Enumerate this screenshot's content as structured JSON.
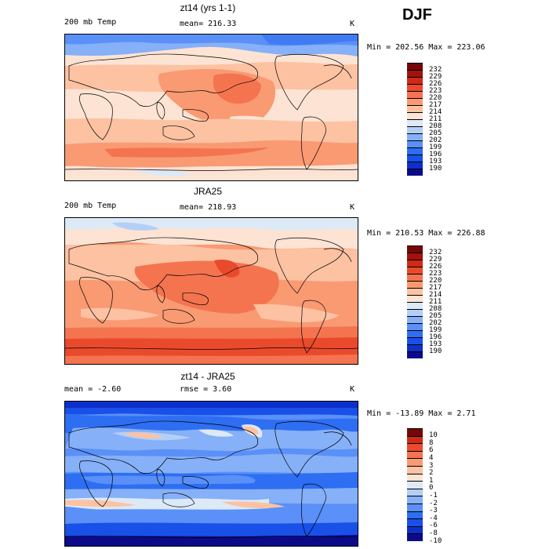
{
  "season_label": "DJF",
  "palette_abs": [
    "#0b0b8a",
    "#0d2fcc",
    "#1950e8",
    "#2e6ef2",
    "#5a90f7",
    "#86b0f7",
    "#b4cff7",
    "#dce9f7",
    "#fde3d3",
    "#fcc2a2",
    "#f99a73",
    "#f47450",
    "#ea4a2c",
    "#cf2a14",
    "#a3130c",
    "#750707"
  ],
  "palette_diff": [
    "#0b0b8a",
    "#0d2fcc",
    "#1950e8",
    "#2e6ef2",
    "#5a90f7",
    "#86b0f7",
    "#b4cff7",
    "#dce9f7",
    "#fde3d3",
    "#fcc2a2",
    "#f99a73",
    "#f47450",
    "#ea4a2c",
    "#cf2a14",
    "#750707"
  ],
  "panels": [
    {
      "title": "zt14 (yrs 1-1)",
      "left_label": "200 mb Temp",
      "mid_label": "mean= 216.33",
      "unit": "K",
      "minmax": "Min = 202.56 Max = 223.06",
      "colorbar_ticks": [
        "232",
        "229",
        "226",
        "223",
        "220",
        "217",
        "214",
        "211",
        "208",
        "205",
        "202",
        "199",
        "196",
        "193",
        "190"
      ],
      "chart_data": {
        "type": "heatmap",
        "title": "zt14 (yrs 1-1)",
        "variable": "200 mb Temp",
        "unit": "K",
        "mean": 216.33,
        "min": 202.56,
        "max": 223.06,
        "levels": [
          190,
          193,
          196,
          199,
          202,
          205,
          208,
          211,
          214,
          217,
          220,
          223,
          226,
          229,
          232
        ],
        "x_range": [
          0,
          360
        ],
        "y_range": [
          -90,
          90
        ]
      }
    },
    {
      "title": "JRA25",
      "left_label": "200 mb Temp",
      "mid_label": "mean= 218.93",
      "unit": "K",
      "minmax": "Min = 210.53 Max = 226.88",
      "colorbar_ticks": [
        "232",
        "229",
        "226",
        "223",
        "220",
        "217",
        "214",
        "211",
        "208",
        "205",
        "202",
        "199",
        "196",
        "193",
        "190"
      ],
      "chart_data": {
        "type": "heatmap",
        "title": "JRA25",
        "variable": "200 mb Temp",
        "unit": "K",
        "mean": 218.93,
        "min": 210.53,
        "max": 226.88,
        "levels": [
          190,
          193,
          196,
          199,
          202,
          205,
          208,
          211,
          214,
          217,
          220,
          223,
          226,
          229,
          232
        ],
        "x_range": [
          0,
          360
        ],
        "y_range": [
          -90,
          90
        ]
      }
    },
    {
      "title": "zt14 - JRA25",
      "left_label": "mean =   -2.60",
      "mid_label": "rmse =   3.60",
      "unit": "K",
      "minmax": "Min = -13.89 Max =   2.71",
      "colorbar_ticks": [
        "10",
        "8",
        "6",
        "4",
        "3",
        "2",
        "1",
        "0",
        "-1",
        "-2",
        "-3",
        "-4",
        "-6",
        "-8",
        "-10"
      ],
      "chart_data": {
        "type": "heatmap",
        "title": "zt14 - JRA25",
        "unit": "K",
        "mean": -2.6,
        "rmse": 3.6,
        "min": -13.89,
        "max": 2.71,
        "levels": [
          -10,
          -8,
          -6,
          -4,
          -3,
          -2,
          -1,
          0,
          1,
          2,
          3,
          4,
          6,
          8,
          10
        ],
        "x_range": [
          0,
          360
        ],
        "y_range": [
          -90,
          90
        ]
      }
    }
  ]
}
